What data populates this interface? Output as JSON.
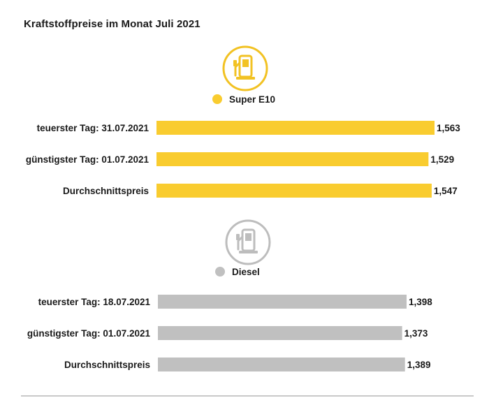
{
  "title": "Kraftstoffpreise im Monat Juli 2021",
  "chart_data": [
    {
      "type": "bar",
      "orientation": "horizontal",
      "icon": "fuel-pump-icon",
      "color": "#f9cc2f",
      "legend": "Super E10",
      "categories": [
        "teuerster Tag: 31.07.2021",
        "günstigster Tag: 01.07.2021",
        "Durchschnittspreis"
      ],
      "values": [
        1.563,
        1.529,
        1.547
      ],
      "value_labels": [
        "1,563",
        "1,529",
        "1,547"
      ]
    },
    {
      "type": "bar",
      "orientation": "horizontal",
      "icon": "fuel-pump-icon",
      "color": "#c0c0c0",
      "legend": "Diesel",
      "categories": [
        "teuerster Tag: 18.07.2021",
        "günstigster Tag: 01.07.2021",
        "Durchschnittspreis"
      ],
      "values": [
        1.398,
        1.373,
        1.389
      ],
      "value_labels": [
        "1,398",
        "1,373",
        "1,389"
      ]
    }
  ]
}
